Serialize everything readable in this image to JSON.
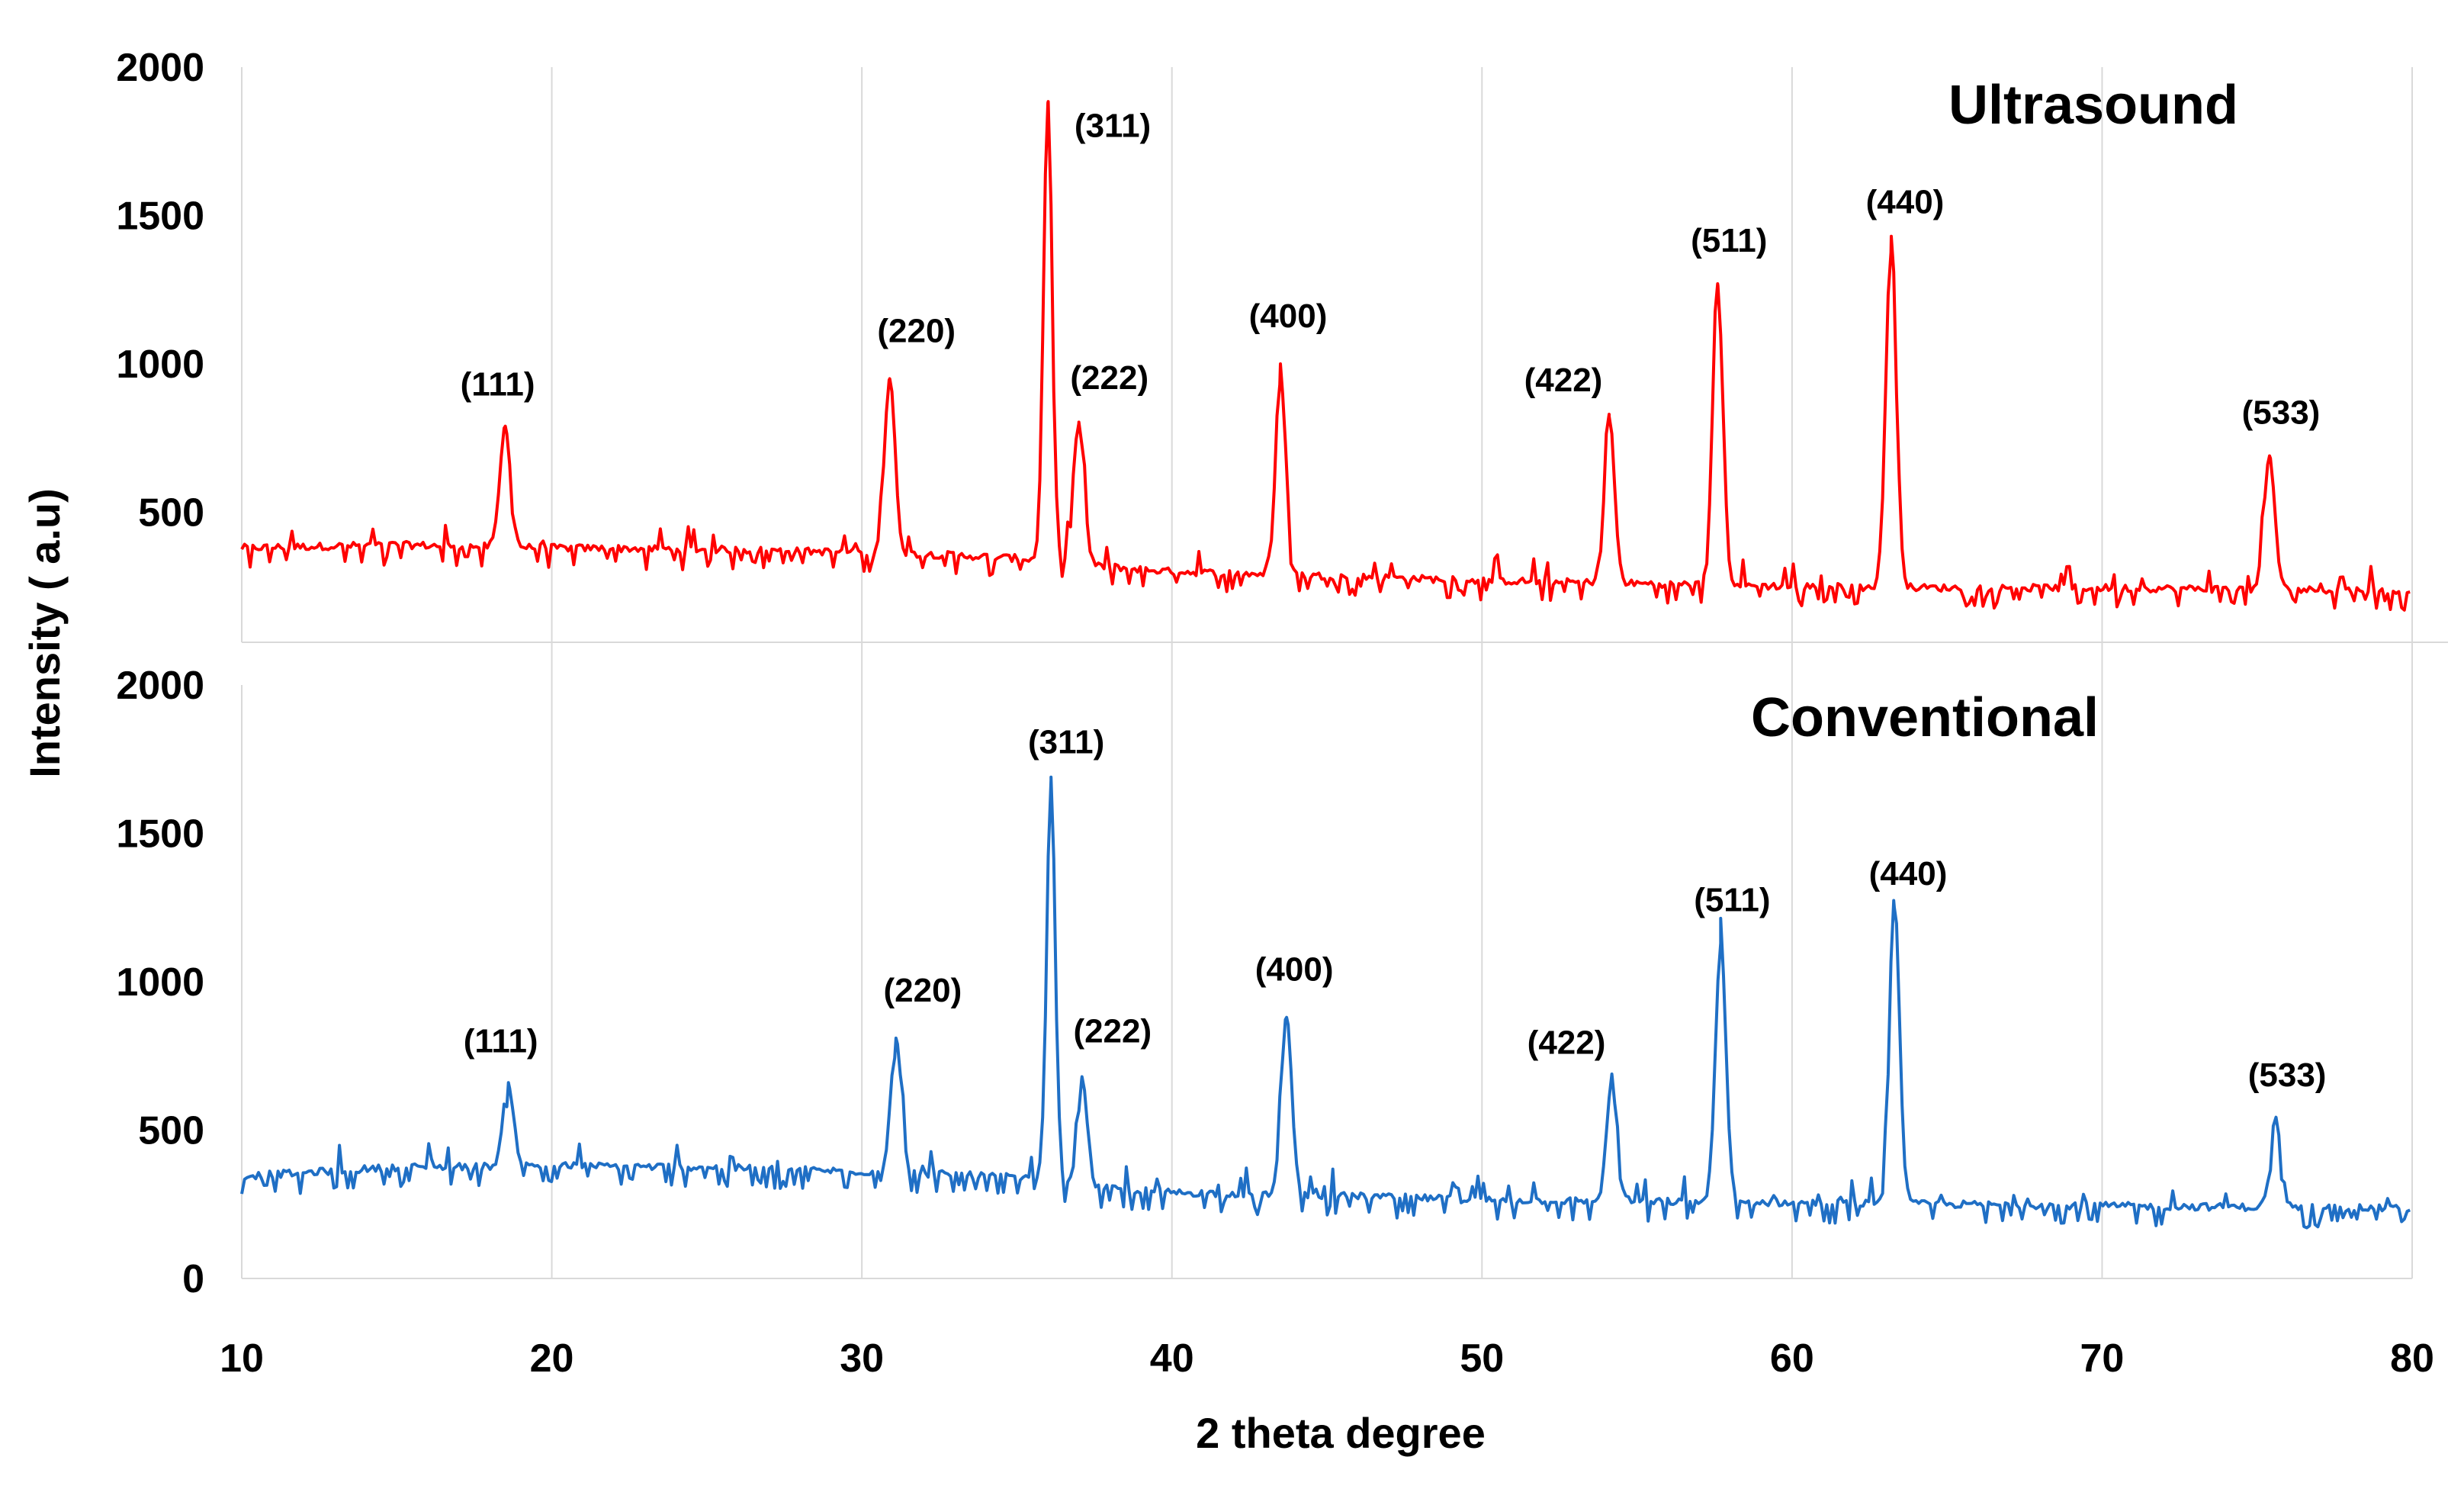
{
  "chart_data": {
    "type": "line",
    "xlabel": "2 theta degree",
    "ylabel": "Intensity ( a.u)",
    "xlim": [
      10,
      80
    ],
    "x_ticks": [
      10,
      20,
      30,
      40,
      50,
      60,
      70,
      80
    ],
    "grid": "vertical",
    "panels": [
      {
        "name": "Ultrasound",
        "color": "#ff0000",
        "ylim": [
          0,
          2000
        ],
        "y_ticks": [
          500,
          1000,
          1500,
          2000
        ],
        "baseline": [
          [
            10,
            380
          ],
          [
            15,
            390
          ],
          [
            20,
            380
          ],
          [
            25,
            375
          ],
          [
            30,
            365
          ],
          [
            33,
            355
          ],
          [
            35,
            345
          ],
          [
            37.5,
            320
          ],
          [
            40,
            300
          ],
          [
            45,
            285
          ],
          [
            50,
            270
          ],
          [
            55,
            260
          ],
          [
            60,
            250
          ],
          [
            65,
            245
          ],
          [
            70,
            245
          ],
          [
            75,
            240
          ],
          [
            80,
            235
          ]
        ],
        "peaks": [
          {
            "label": "(111)",
            "x": 18.5,
            "y": 790
          },
          {
            "label": "(220)",
            "x": 30.9,
            "y": 950
          },
          {
            "label": "(311)",
            "x": 36.0,
            "y": 1880
          },
          {
            "label": "(222)",
            "x": 37.0,
            "y": 800
          },
          {
            "label": "(400)",
            "x": 43.5,
            "y": 1000
          },
          {
            "label": "(422)",
            "x": 54.1,
            "y": 830
          },
          {
            "label": "(511)",
            "x": 57.6,
            "y": 1270
          },
          {
            "label": "(440)",
            "x": 63.2,
            "y": 1430
          },
          {
            "label": "(533)",
            "x": 75.4,
            "y": 690
          }
        ]
      },
      {
        "name": "Conventional",
        "color": "#1f6fc5",
        "ylim": [
          0,
          2000
        ],
        "y_ticks": [
          0,
          500,
          1000,
          1500,
          2000
        ],
        "baseline": [
          [
            10,
            345
          ],
          [
            15,
            375
          ],
          [
            20,
            380
          ],
          [
            25,
            375
          ],
          [
            30,
            360
          ],
          [
            33,
            350
          ],
          [
            35,
            340
          ],
          [
            37.5,
            305
          ],
          [
            40,
            290
          ],
          [
            45,
            280
          ],
          [
            50,
            265
          ],
          [
            55,
            260
          ],
          [
            60,
            255
          ],
          [
            65,
            250
          ],
          [
            70,
            245
          ],
          [
            75,
            240
          ],
          [
            80,
            235
          ]
        ],
        "peaks": [
          {
            "label": "(111)",
            "x": 18.6,
            "y": 660
          },
          {
            "label": "(220)",
            "x": 31.1,
            "y": 810
          },
          {
            "label": "(311)",
            "x": 36.1,
            "y": 1680
          },
          {
            "label": "(222)",
            "x": 37.1,
            "y": 680
          },
          {
            "label": "(400)",
            "x": 43.7,
            "y": 880
          },
          {
            "label": "(422)",
            "x": 54.2,
            "y": 680
          },
          {
            "label": "(511)",
            "x": 57.7,
            "y": 1130
          },
          {
            "label": "(440)",
            "x": 63.3,
            "y": 1250
          },
          {
            "label": "(533)",
            "x": 75.6,
            "y": 540
          }
        ]
      }
    ]
  }
}
